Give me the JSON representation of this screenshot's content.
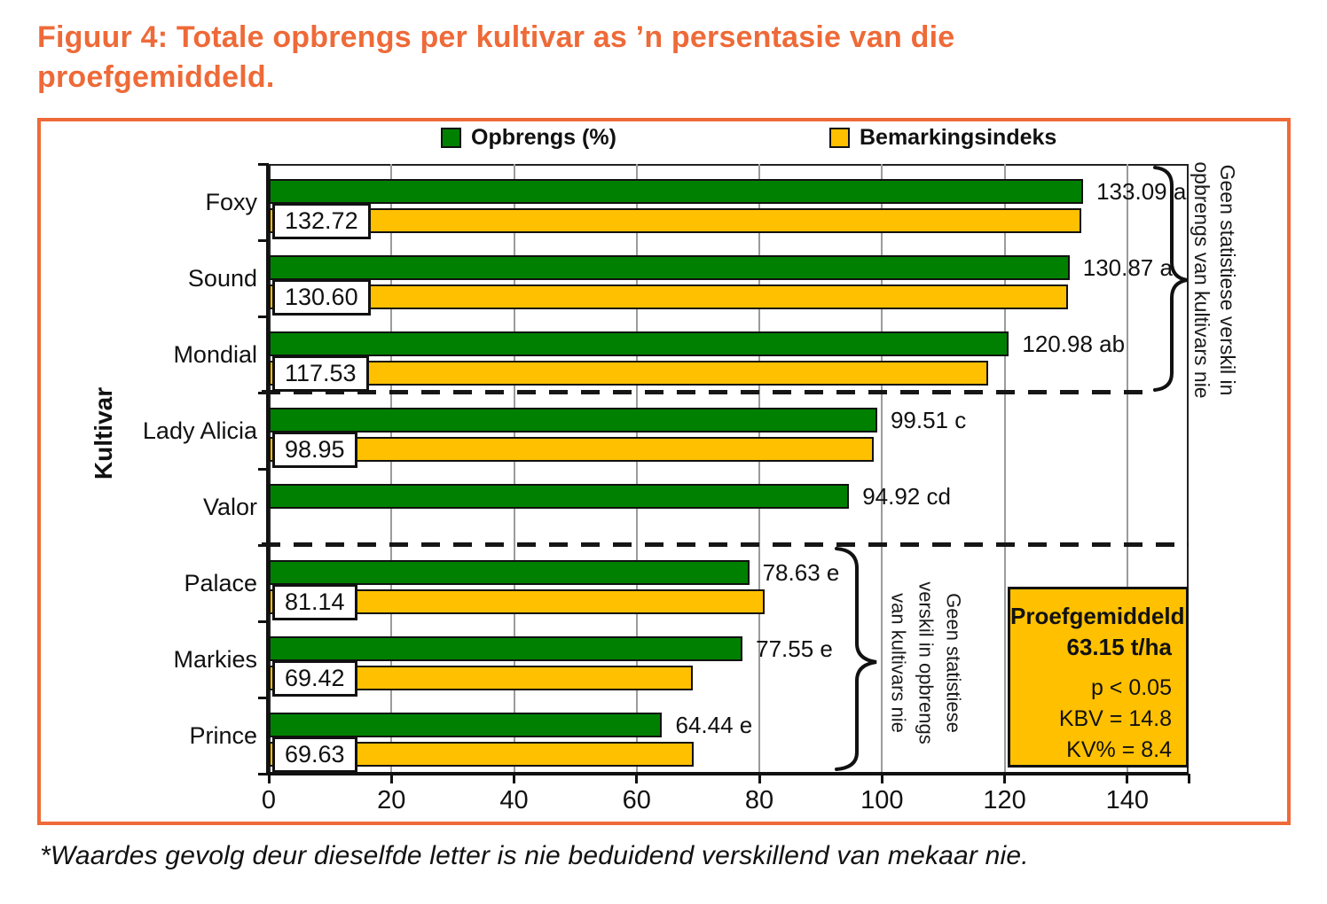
{
  "figure": {
    "title": "Figuur 4: Totale opbrengs per kultivar as ’n persentasie van die proefgemiddeld.",
    "footnote": "*Waardes gevolg deur dieselfde letter is nie beduidend verskillend van mekaar nie."
  },
  "legend": {
    "items": [
      {
        "label": "Opbrengs (%)",
        "color": "#008000"
      },
      {
        "label": "Bemarkingsindeks",
        "color": "#FFC000"
      }
    ]
  },
  "chart_data": {
    "type": "bar",
    "orientation": "horizontal",
    "title": "",
    "xlabel": "",
    "ylabel": "Kultivar",
    "xlim": [
      0,
      150
    ],
    "xticks": [
      0,
      20,
      40,
      60,
      80,
      100,
      120,
      140
    ],
    "grid": true,
    "legend_position": "top",
    "categories": [
      "Foxy",
      "Sound",
      "Mondial",
      "Lady Alicia",
      "Valor",
      "Palace",
      "Markies",
      "Prince"
    ],
    "series": [
      {
        "name": "Opbrengs (%)",
        "color": "#008000",
        "values": [
          133.09,
          130.87,
          120.98,
          99.51,
          94.92,
          78.63,
          77.55,
          64.44
        ],
        "bar_labels": [
          "133.09 a",
          "130.87 a",
          "120.98 ab",
          "99.51 c",
          "94.92 cd",
          "78.63 e",
          "77.55 e",
          "64.44 e"
        ]
      },
      {
        "name": "Bemarkingsindeks",
        "color": "#FFC000",
        "values": [
          132.72,
          130.6,
          117.53,
          98.95,
          null,
          81.14,
          69.42,
          69.63
        ],
        "boxed_labels": [
          "132.72",
          "130.60",
          "117.53",
          "98.95",
          null,
          "81.14",
          "69.42",
          "69.63"
        ]
      }
    ],
    "group_separators_after_category": [
      "Mondial",
      "Valor"
    ],
    "annotations": [
      {
        "id": "top-bracket-note",
        "applies_to": [
          "Foxy",
          "Sound",
          "Mondial"
        ],
        "text": "Geen statistiese verskil in\nopbrengs van kultivars nie"
      },
      {
        "id": "bottom-bracket-note",
        "applies_to": [
          "Palace",
          "Markies",
          "Prince"
        ],
        "text": "Geen statistiese\nverskil in opbrengs\nvan kultivars nie"
      }
    ],
    "info_box": {
      "line1": "Proefgemiddeld",
      "line2": "63.15 t/ha",
      "stats": [
        "p < 0.05",
        "KBV = 14.8",
        "KV% = 8.4"
      ],
      "bg_color": "#FFC000"
    }
  },
  "colors": {
    "accent_orange": "#EE6A38",
    "bar_green": "#008000",
    "bar_yellow": "#FFC000"
  }
}
